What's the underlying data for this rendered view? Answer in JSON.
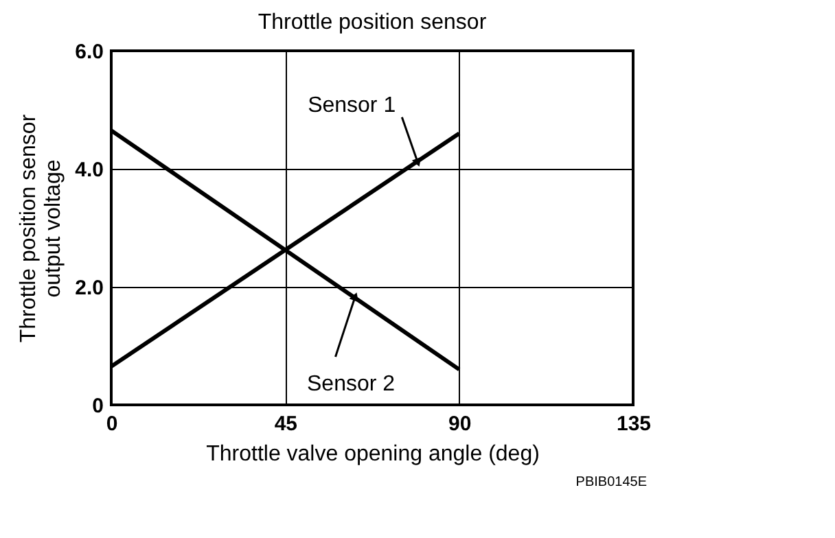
{
  "chart_data": {
    "type": "line",
    "title": "Throttle position sensor",
    "xlabel": "Throttle valve opening angle (deg)",
    "ylabel": "Throttle position sensor output voltage",
    "x": [
      0,
      90
    ],
    "series": [
      {
        "name": "Sensor 1",
        "color": "#000000",
        "values": [
          0.65,
          4.6
        ]
      },
      {
        "name": "Sensor 2",
        "color": "#000000",
        "values": [
          4.65,
          0.6
        ]
      }
    ],
    "xlim": [
      0,
      135
    ],
    "xticks": [
      0,
      45,
      90,
      135
    ],
    "ylim": [
      0,
      6
    ],
    "yticks": [
      0,
      {
        "value": 2,
        "label": "2.0"
      },
      {
        "value": 4,
        "label": "4.0"
      },
      {
        "value": 6,
        "label": "6.0"
      }
    ],
    "grid": true,
    "legend": false,
    "marker": "none",
    "line_style": "solid",
    "annotations": [
      "PBIB0145E"
    ]
  }
}
